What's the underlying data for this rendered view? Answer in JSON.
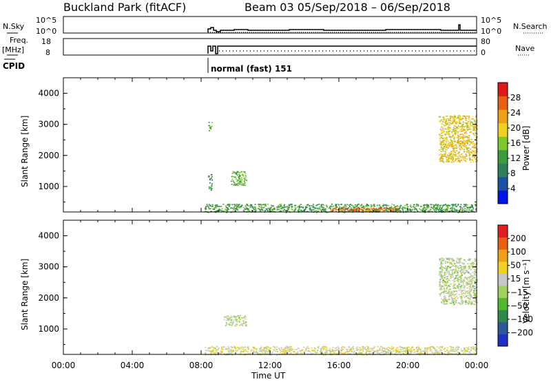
{
  "header": {
    "station": "Buckland Park (fitACF)",
    "beam_date": "Beam 03  05/Sep/2018 – 06/Sep/2018"
  },
  "status_panels": {
    "nsky_label": "N.Sky",
    "nsky_ticks": [
      "10^5",
      "10^0"
    ],
    "nsearch_label": "N.Search",
    "nsearch_ticks": [
      "10^5",
      "10^0"
    ],
    "freq_label": "Freq.",
    "freq_unit": "[MHz]",
    "freq_ticks": [
      "18",
      "8"
    ],
    "nave_label": "Nave",
    "nave_ticks": [
      "80",
      "0"
    ],
    "cpid_label": "CPID",
    "cpid_text": "normal (fast) 151"
  },
  "power_panel": {
    "ylabel": "Slant Range [km]",
    "yticks": [
      "4000",
      "3000",
      "2000",
      "1000"
    ],
    "colorbar_label": "Power [dB]",
    "colorbar_ticks": [
      "28",
      "24",
      "20",
      "16",
      "12",
      "8",
      "4"
    ],
    "colors": [
      "#0016e8",
      "#1e4fa8",
      "#2f7f5a",
      "#3a9c3a",
      "#7ec82a",
      "#f0d020",
      "#f0a018",
      "#e86010",
      "#e01818"
    ]
  },
  "velocity_panel": {
    "ylabel": "Slant Range [km]",
    "yticks": [
      "4000",
      "3000",
      "2000",
      "1000"
    ],
    "colorbar_label": "Velocity [m s⁻¹]",
    "colorbar_ticks": [
      "200",
      "100",
      "50",
      "15",
      "−15",
      "−50",
      "−100",
      "−200"
    ],
    "colors": [
      "#2030c0",
      "#2a5a9a",
      "#2f8a4a",
      "#4fb830",
      "#a0d060",
      "#c8c8c8",
      "#f0d020",
      "#f0a018",
      "#e86010",
      "#e02020"
    ]
  },
  "xaxis": {
    "ticks": [
      "00:00",
      "04:00",
      "08:00",
      "12:00",
      "16:00",
      "20:00",
      "00:00"
    ],
    "label": "Time UT"
  },
  "chart_data": [
    {
      "type": "heatmap",
      "name": "Power",
      "title": "Buckland Park (fitACF)  Beam 03  05/Sep/2018 – 06/Sep/2018",
      "xlabel": "Time UT",
      "ylabel": "Slant Range [km]",
      "xlim_hours": [
        0,
        24
      ],
      "ylim_km": [
        180,
        4500
      ],
      "colorbar": {
        "label": "Power [dB]",
        "range": [
          0,
          32
        ]
      },
      "regions": [
        {
          "t_start_h": 8.2,
          "t_end_h": 24.0,
          "range_km": [
            180,
            450
          ],
          "typical_value": 12
        },
        {
          "t_start_h": 15.5,
          "t_end_h": 19.5,
          "range_km": [
            200,
            330
          ],
          "typical_value": 26
        },
        {
          "t_start_h": 8.4,
          "t_end_h": 8.6,
          "range_km": [
            900,
            1400
          ],
          "typical_value": 10
        },
        {
          "t_start_h": 8.4,
          "t_end_h": 8.6,
          "range_km": [
            2800,
            3100
          ],
          "typical_value": 14
        },
        {
          "t_start_h": 9.7,
          "t_end_h": 10.6,
          "range_km": [
            1050,
            1500
          ],
          "typical_value": 14
        },
        {
          "t_start_h": 21.8,
          "t_end_h": 24.0,
          "range_km": [
            1800,
            3300
          ],
          "typical_value": 20
        }
      ]
    },
    {
      "type": "heatmap",
      "name": "Velocity",
      "xlabel": "Time UT",
      "ylabel": "Slant Range [km]",
      "xlim_hours": [
        0,
        24
      ],
      "ylim_km": [
        180,
        4500
      ],
      "colorbar": {
        "label": "Velocity [m s⁻¹]",
        "range": [
          -250,
          250
        ]
      },
      "regions": [
        {
          "t_start_h": 8.2,
          "t_end_h": 24.0,
          "range_km": [
            180,
            450
          ],
          "typical_value": 40
        },
        {
          "t_start_h": 9.3,
          "t_end_h": 10.6,
          "range_km": [
            1100,
            1450
          ],
          "typical_value": 0
        },
        {
          "t_start_h": 21.8,
          "t_end_h": 24.0,
          "range_km": [
            1800,
            3300
          ],
          "typical_value": 0
        }
      ]
    }
  ]
}
